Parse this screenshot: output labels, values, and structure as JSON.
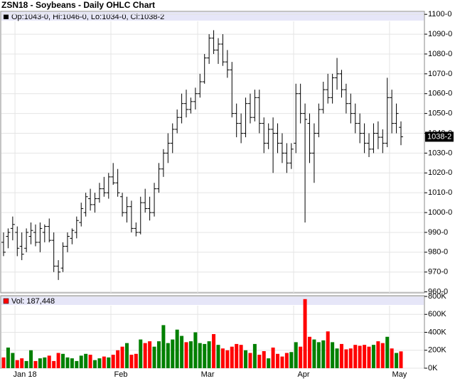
{
  "chart_data": {
    "type": "ohlc",
    "title": "ZSN18 - Soybeans - Daily OHLC Chart",
    "legend_text": "Op:1043-0, Hi:1046-0, Lo:1034-0, Cl:1038-2",
    "last_label": "1038-2",
    "volume_legend": "Vol: 187,448",
    "categories": [
      null,
      null,
      null,
      "Jan 18",
      null,
      null,
      null,
      null,
      null,
      null,
      null,
      null,
      null,
      null,
      null,
      null,
      null,
      null,
      null,
      null,
      null,
      null,
      null,
      null,
      "Feb",
      null,
      null,
      null,
      null,
      null,
      null,
      null,
      null,
      null,
      null,
      null,
      null,
      null,
      null,
      null,
      null,
      null,
      null,
      "Mar",
      null,
      null,
      null,
      null,
      null,
      null,
      null,
      null,
      null,
      null,
      null,
      null,
      null,
      null,
      null,
      null,
      null,
      null,
      null,
      null,
      "Apr",
      null,
      null,
      null,
      null,
      null,
      null,
      null,
      null,
      null,
      null,
      null,
      null,
      null,
      null,
      null,
      null,
      null,
      null,
      null,
      null,
      "May",
      null,
      null
    ],
    "open": [
      985,
      988,
      992,
      990,
      983,
      982,
      988,
      990,
      985,
      990,
      993,
      986,
      973,
      972,
      983,
      987,
      990,
      995,
      1000,
      1007,
      1004,
      1007,
      1012,
      1010,
      1018,
      1015,
      1008,
      1000,
      1003,
      992,
      990,
      1005,
      1002,
      1000,
      1012,
      1022,
      1030,
      1035,
      1042,
      1048,
      1055,
      1052,
      1056,
      1060,
      1066,
      1078,
      1088,
      1082,
      1085,
      1076,
      1072,
      1050,
      1045,
      1040,
      1055,
      1048,
      1058,
      1045,
      1035,
      1042,
      1040,
      1035,
      1030,
      1025,
      1035,
      1060,
      1050,
      1045,
      1030,
      1040,
      1052,
      1062,
      1058,
      1068,
      1070,
      1062,
      1055,
      1050,
      1045,
      1040,
      1035,
      1032,
      1040,
      1038,
      1035,
      1058,
      1045,
      1043
    ],
    "high": [
      990,
      992,
      998,
      993,
      990,
      992,
      995,
      994,
      995,
      994,
      997,
      990,
      976,
      985,
      990,
      992,
      998,
      1005,
      1010,
      1012,
      1010,
      1015,
      1018,
      1020,
      1025,
      1022,
      1010,
      1008,
      1006,
      995,
      1008,
      1012,
      1008,
      1015,
      1025,
      1032,
      1040,
      1045,
      1052,
      1060,
      1062,
      1058,
      1063,
      1070,
      1080,
      1090,
      1092,
      1088,
      1090,
      1082,
      1076,
      1055,
      1050,
      1058,
      1060,
      1062,
      1062,
      1048,
      1045,
      1048,
      1045,
      1040,
      1035,
      1035,
      1065,
      1065,
      1055,
      1050,
      1045,
      1055,
      1066,
      1070,
      1070,
      1078,
      1072,
      1065,
      1060,
      1055,
      1050,
      1045,
      1040,
      1045,
      1046,
      1042,
      1068,
      1062,
      1055,
      1046
    ],
    "low": [
      978,
      982,
      986,
      978,
      976,
      980,
      984,
      983,
      980,
      985,
      985,
      970,
      966,
      970,
      980,
      984,
      987,
      993,
      998,
      1001,
      1000,
      1005,
      1008,
      1007,
      1014,
      1008,
      998,
      995,
      990,
      988,
      989,
      1000,
      996,
      998,
      1010,
      1018,
      1025,
      1030,
      1040,
      1045,
      1048,
      1050,
      1052,
      1058,
      1065,
      1075,
      1080,
      1075,
      1074,
      1068,
      1048,
      1038,
      1035,
      1038,
      1045,
      1046,
      1040,
      1030,
      1032,
      1020,
      1030,
      1025,
      1020,
      1022,
      1030,
      1045,
      995,
      1025,
      1015,
      1038,
      1050,
      1055,
      1055,
      1062,
      1058,
      1050,
      1045,
      1040,
      1035,
      1030,
      1028,
      1030,
      1032,
      1030,
      1033,
      1040,
      1040,
      1034
    ],
    "close": [
      980,
      990,
      994,
      982,
      979,
      990,
      991,
      985,
      992,
      993,
      986,
      973,
      970,
      983,
      988,
      991,
      996,
      1002,
      1008,
      1004,
      1007,
      1012,
      1010,
      1018,
      1015,
      1010,
      1000,
      1003,
      992,
      990,
      1005,
      1002,
      1000,
      1012,
      1022,
      1030,
      1035,
      1042,
      1048,
      1055,
      1052,
      1056,
      1060,
      1066,
      1078,
      1088,
      1082,
      1085,
      1076,
      1072,
      1050,
      1045,
      1040,
      1055,
      1048,
      1058,
      1045,
      1035,
      1042,
      1040,
      1035,
      1030,
      1025,
      1032,
      1060,
      1050,
      1047,
      1030,
      1040,
      1052,
      1062,
      1058,
      1068,
      1070,
      1062,
      1055,
      1050,
      1045,
      1040,
      1035,
      1032,
      1040,
      1038,
      1035,
      1058,
      1045,
      1050,
      1038.25
    ],
    "volume": [
      120000,
      230000,
      170000,
      90000,
      110000,
      80000,
      200000,
      80000,
      110000,
      120000,
      140000,
      80000,
      170000,
      160000,
      120000,
      110000,
      80000,
      140000,
      160000,
      150000,
      90000,
      110000,
      130000,
      120000,
      150000,
      200000,
      240000,
      280000,
      150000,
      160000,
      320000,
      280000,
      300000,
      240000,
      300000,
      480000,
      280000,
      320000,
      430000,
      360000,
      290000,
      300000,
      400000,
      280000,
      270000,
      300000,
      380000,
      260000,
      220000,
      200000,
      240000,
      270000,
      260000,
      200000,
      170000,
      270000,
      150000,
      190000,
      110000,
      230000,
      160000,
      130000,
      170000,
      180000,
      290000,
      240000,
      770000,
      350000,
      320000,
      290000,
      310000,
      410000,
      290000,
      220000,
      270000,
      210000,
      220000,
      260000,
      250000,
      260000,
      240000,
      260000,
      300000,
      280000,
      350000,
      220000,
      170000,
      187448
    ],
    "bar_color": "#000000",
    "up_color": "#008000",
    "down_color": "#ff0000",
    "ylim": [
      959.5,
      1101.5
    ],
    "yticks": [
      {
        "value": 960,
        "label": "960-0"
      },
      {
        "value": 970,
        "label": "970-0"
      },
      {
        "value": 980,
        "label": "980-0"
      },
      {
        "value": 990,
        "label": "990-0"
      },
      {
        "value": 1000,
        "label": "1000-0"
      },
      {
        "value": 1010,
        "label": "1010-0"
      },
      {
        "value": 1020,
        "label": "1020-0"
      },
      {
        "value": 1030,
        "label": "1030-0"
      },
      {
        "value": 1040,
        "label": "1040-0"
      },
      {
        "value": 1050,
        "label": "1050-0"
      },
      {
        "value": 1060,
        "label": "1060-0"
      },
      {
        "value": 1070,
        "label": "1070-0"
      },
      {
        "value": 1080,
        "label": "1080-0"
      },
      {
        "value": 1090,
        "label": "1090-0"
      },
      {
        "value": 1100,
        "label": "1100-0"
      }
    ],
    "y2lim": [
      0,
      800000
    ],
    "y2ticks": [
      {
        "value": 0,
        "label": "0K"
      },
      {
        "value": 200000,
        "label": "200K"
      },
      {
        "value": 400000,
        "label": "400K"
      },
      {
        "value": 600000,
        "label": "600K"
      },
      {
        "value": 800000,
        "label": "800K"
      }
    ],
    "grid": true
  }
}
